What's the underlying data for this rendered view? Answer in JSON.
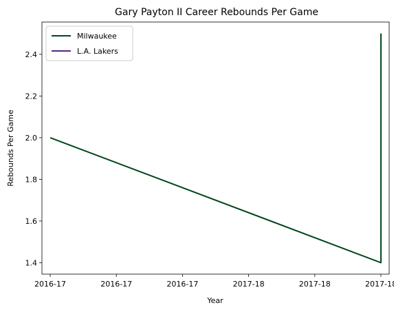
{
  "chart_data": {
    "type": "line",
    "title": "Gary Payton II Career Rebounds Per Game",
    "xlabel": "Year",
    "ylabel": "Rebounds Per Game",
    "x_ticks": [
      "2016-17",
      "2016-17",
      "2016-17",
      "2017-18",
      "2017-18",
      "2017-18"
    ],
    "x_range": [
      -0.125,
      5.125
    ],
    "ylim": [
      1.345,
      2.555
    ],
    "y_ticks": [
      1.4,
      1.6,
      1.8,
      2.0,
      2.2,
      2.4
    ],
    "grid": false,
    "legend_position": "top-left",
    "series": [
      {
        "name": "Milwaukee",
        "color": "#00471B",
        "points": [
          {
            "x": 0,
            "y": 2.0
          },
          {
            "x": 5,
            "y": 1.4
          },
          {
            "x": 5,
            "y": 2.5
          }
        ]
      },
      {
        "name": "L.A. Lakers",
        "color": "#552583",
        "points": []
      }
    ]
  }
}
